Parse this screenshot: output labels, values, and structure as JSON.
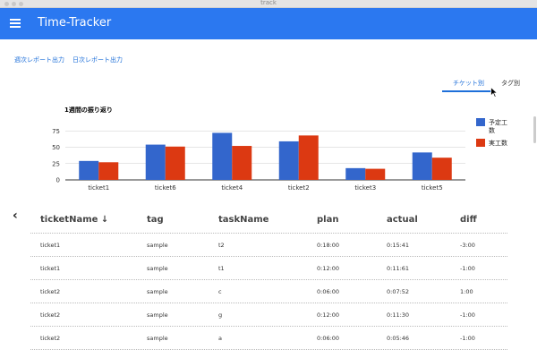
{
  "window": {
    "title": "track"
  },
  "appbar": {
    "title": "Time-Tracker",
    "menu_icon": "hamburger-menu-icon",
    "color": "#2b78f0"
  },
  "report_links": {
    "weekly": "週次レポート出力",
    "daily": "日次レポート出力"
  },
  "tabs": [
    {
      "label": "チケット別",
      "active": true
    },
    {
      "label": "タグ別",
      "active": false
    }
  ],
  "chart": {
    "title": "1週間の振り返り"
  },
  "chart_data": {
    "type": "bar",
    "title": "1週間の振り返り",
    "categories": [
      "ticket1",
      "ticket6",
      "ticket4",
      "ticket2",
      "ticket3",
      "ticket5"
    ],
    "series": [
      {
        "name": "予定工数",
        "color": "#3366cc",
        "values": [
          29,
          54,
          72,
          59,
          18,
          42
        ]
      },
      {
        "name": "実工数",
        "color": "#dc3912",
        "values": [
          27,
          51,
          52,
          68,
          17,
          34
        ]
      }
    ],
    "ylim": [
      0,
      100
    ],
    "yticks": [
      0,
      25,
      50,
      75
    ],
    "grid": true,
    "legend": "right"
  },
  "table": {
    "back_icon": "chevron-left-icon",
    "headers": [
      "ticketName ↓",
      "tag",
      "taskName",
      "plan",
      "actual",
      "diff"
    ],
    "rows": [
      [
        "ticket1",
        "sample",
        "t2",
        "0:18:00",
        "0:15:41",
        "-3:00"
      ],
      [
        "ticket1",
        "sample",
        "t1",
        "0:12:00",
        "0:11:61",
        "-1:00"
      ],
      [
        "ticket2",
        "sample",
        "c",
        "0:06:00",
        "0:07:52",
        "1:00"
      ],
      [
        "ticket2",
        "sample",
        "g",
        "0:12:00",
        "0:11:30",
        "-1:00"
      ],
      [
        "ticket2",
        "sample",
        "a",
        "0:06:00",
        "0:05:46",
        "-1:00"
      ]
    ]
  }
}
